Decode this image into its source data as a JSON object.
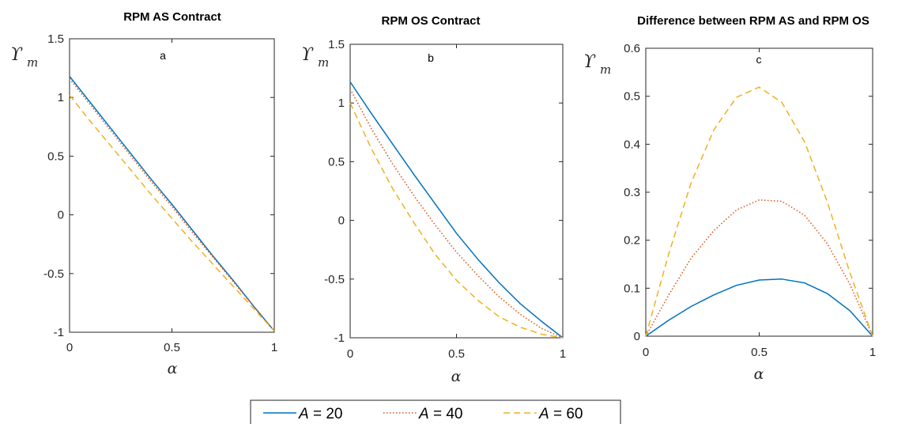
{
  "legend": {
    "entries": [
      {
        "var": "A",
        "rest": " = 20"
      },
      {
        "var": "A",
        "rest": " = 40"
      },
      {
        "var": "A",
        "rest": " = 60"
      }
    ]
  },
  "series_style": [
    {
      "color": "#0072BD",
      "dash": ""
    },
    {
      "color": "#D95319",
      "dash": "1.5 2.5"
    },
    {
      "color": "#EDB120",
      "dash": "8 5"
    }
  ],
  "chart_data": [
    {
      "type": "line",
      "title": "RPM AS Contract",
      "panel_label": "a",
      "xlabel": "α",
      "ylabel_main": "ϒ",
      "ylabel_sub": "m",
      "xlim": [
        0,
        1
      ],
      "ylim": [
        -1,
        1.5
      ],
      "xticks": [
        0,
        0.5,
        1
      ],
      "xtick_labels": [
        "0",
        "0.5",
        "1"
      ],
      "yticks": [
        -1,
        -0.5,
        0,
        0.5,
        1,
        1.5
      ],
      "ytick_labels": [
        "-1",
        "-0.5",
        "0",
        "0.5",
        "1",
        "1.5"
      ],
      "grid": false,
      "x": [
        0,
        0.1,
        0.2,
        0.3,
        0.4,
        0.5,
        0.6,
        0.7,
        0.8,
        0.9,
        1
      ],
      "series": [
        {
          "values": [
            1.18,
            0.96,
            0.74,
            0.52,
            0.3,
            0.09,
            -0.13,
            -0.35,
            -0.56,
            -0.78,
            -0.99
          ]
        },
        {
          "values": [
            1.16,
            0.94,
            0.72,
            0.5,
            0.28,
            0.07,
            -0.15,
            -0.36,
            -0.57,
            -0.78,
            -0.99
          ]
        },
        {
          "values": [
            1.02,
            0.8,
            0.59,
            0.38,
            0.17,
            -0.03,
            -0.23,
            -0.42,
            -0.61,
            -0.8,
            -0.99
          ]
        }
      ]
    },
    {
      "type": "line",
      "title": "RPM OS Contract",
      "panel_label": "b",
      "xlabel": "α",
      "ylabel_main": "ϒ",
      "ylabel_sub": "m",
      "xlim": [
        0,
        1
      ],
      "ylim": [
        -1,
        1.5
      ],
      "xticks": [
        0,
        0.5,
        1
      ],
      "xtick_labels": [
        "0",
        "0.5",
        "1"
      ],
      "yticks": [
        -1,
        -0.5,
        0,
        0.5,
        1,
        1.5
      ],
      "ytick_labels": [
        "-1",
        "-0.5",
        "0",
        "0.5",
        "1",
        "1.5"
      ],
      "grid": false,
      "x": [
        0,
        0.1,
        0.2,
        0.3,
        0.4,
        0.5,
        0.6,
        0.7,
        0.8,
        0.9,
        1
      ],
      "series": [
        {
          "values": [
            1.18,
            0.91,
            0.65,
            0.39,
            0.14,
            -0.11,
            -0.33,
            -0.53,
            -0.71,
            -0.86,
            -1.0
          ]
        },
        {
          "values": [
            1.12,
            0.78,
            0.48,
            0.21,
            -0.04,
            -0.27,
            -0.47,
            -0.65,
            -0.8,
            -0.92,
            -1.0
          ]
        },
        {
          "values": [
            1.0,
            0.61,
            0.27,
            -0.02,
            -0.29,
            -0.51,
            -0.68,
            -0.82,
            -0.91,
            -0.97,
            -1.0
          ]
        }
      ]
    },
    {
      "type": "line",
      "title": "Difference between RPM AS and RPM OS",
      "panel_label": "c",
      "xlabel": "α",
      "ylabel_main": "ϒ",
      "ylabel_sub": "m",
      "xlim": [
        0,
        1
      ],
      "ylim": [
        0,
        0.6
      ],
      "xticks": [
        0,
        0.5,
        1
      ],
      "xtick_labels": [
        "0",
        "0.5",
        "1"
      ],
      "yticks": [
        0,
        0.1,
        0.2,
        0.3,
        0.4,
        0.5,
        0.6
      ],
      "ytick_labels": [
        "0",
        "0.1",
        "0.2",
        "0.3",
        "0.4",
        "0.5",
        "0.6"
      ],
      "grid": false,
      "x": [
        0,
        0.1,
        0.2,
        0.3,
        0.4,
        0.5,
        0.6,
        0.7,
        0.8,
        0.9,
        1
      ],
      "series": [
        {
          "values": [
            0.0,
            0.033,
            0.062,
            0.086,
            0.106,
            0.117,
            0.119,
            0.111,
            0.089,
            0.053,
            0.0
          ]
        },
        {
          "values": [
            0.0,
            0.085,
            0.163,
            0.22,
            0.263,
            0.284,
            0.281,
            0.252,
            0.193,
            0.108,
            0.0
          ]
        },
        {
          "values": [
            0.0,
            0.17,
            0.32,
            0.43,
            0.498,
            0.519,
            0.487,
            0.405,
            0.28,
            0.132,
            0.0
          ]
        }
      ]
    }
  ]
}
